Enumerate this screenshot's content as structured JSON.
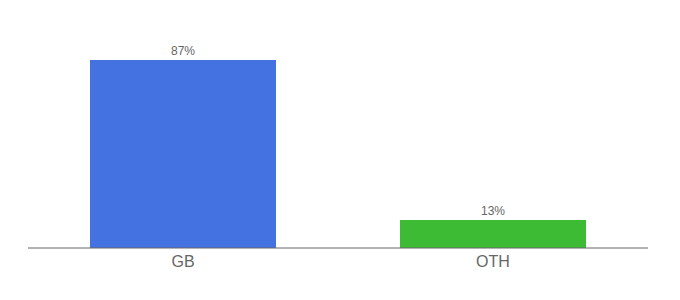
{
  "chart_data": {
    "type": "bar",
    "categories": [
      "GB",
      "OTH"
    ],
    "values": [
      87,
      13
    ],
    "value_labels": [
      "87%",
      "13%"
    ],
    "colors": [
      "#4472e0",
      "#3dbb35"
    ],
    "ylim": [
      0,
      100
    ],
    "data_labels": true,
    "tick_labels": "x",
    "grid": false
  }
}
